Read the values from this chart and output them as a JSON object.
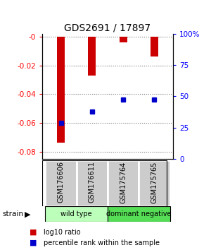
{
  "title": "GDS2691 / 17897",
  "samples": [
    "GSM176606",
    "GSM176611",
    "GSM175764",
    "GSM175765"
  ],
  "log10_ratio": [
    -0.074,
    -0.027,
    -0.004,
    -0.014
  ],
  "percentile_rank_pct": [
    25,
    35,
    45,
    45
  ],
  "groups": [
    {
      "label": "wild type",
      "indices": [
        0,
        1
      ],
      "color": "#bbffbb"
    },
    {
      "label": "dominant negative",
      "indices": [
        2,
        3
      ],
      "color": "#55dd55"
    }
  ],
  "bar_color": "#cc0000",
  "marker_color": "#0000cc",
  "left_ylim": [
    -0.085,
    0.002
  ],
  "left_yticks": [
    0,
    -0.02,
    -0.04,
    -0.06,
    -0.08
  ],
  "left_yticklabels": [
    "-0",
    "-0.02",
    "-0.04",
    "-0.06",
    "-0.08"
  ],
  "right_ylim": [
    0,
    100
  ],
  "right_yticks": [
    0,
    25,
    50,
    75,
    100
  ],
  "right_yticklabels": [
    "0",
    "25",
    "50",
    "75",
    "100%"
  ],
  "bar_width": 0.25,
  "legend_red_label": "log10 ratio",
  "legend_blue_label": "percentile rank within the sample",
  "strain_label": "strain",
  "background_color": "#ffffff",
  "label_area_color": "#cccccc",
  "dotted_line_color": "#777777"
}
